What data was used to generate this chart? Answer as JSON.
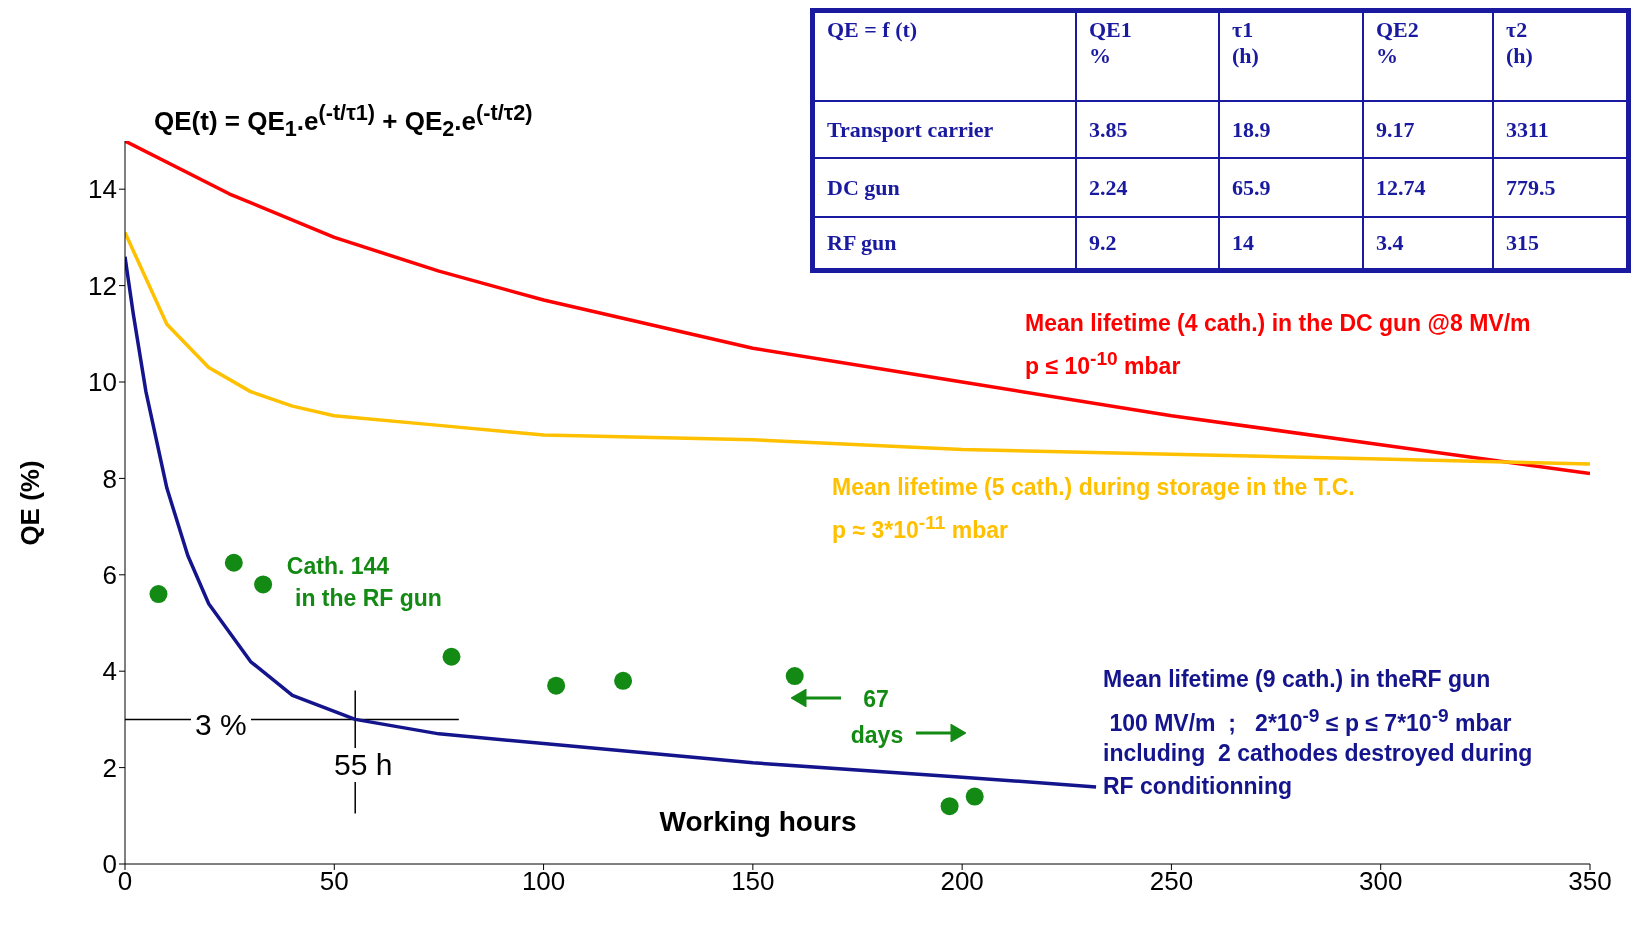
{
  "chart_data": [
    {
      "type": "line",
      "xlabel": "Working hours",
      "ylabel": "QE (%)",
      "xlim": [
        0,
        350
      ],
      "xticks": [
        0,
        50,
        100,
        150,
        200,
        250,
        300,
        350
      ],
      "ylim": [
        0,
        15
      ],
      "yticks": [
        0,
        2,
        4,
        6,
        8,
        10,
        12,
        14
      ],
      "marker": "none",
      "line_style": "solid",
      "series": [
        {
          "name": "Mean lifetime (4 cath.) in the DC gun @8 MV/m",
          "color": "#ff0000",
          "x": [
            0,
            25,
            50,
            75,
            100,
            150,
            200,
            250,
            300,
            350
          ],
          "values": [
            15.0,
            13.9,
            13.0,
            12.3,
            11.7,
            10.7,
            10.0,
            9.3,
            8.7,
            8.1
          ]
        },
        {
          "name": "Mean lifetime (5 cath.) during storage in the T.C.",
          "color": "#ffc000",
          "x": [
            0,
            10,
            20,
            30,
            40,
            50,
            75,
            100,
            150,
            200,
            250,
            300,
            350
          ],
          "values": [
            13.1,
            11.2,
            10.3,
            9.8,
            9.5,
            9.3,
            9.1,
            8.9,
            8.8,
            8.6,
            8.5,
            8.4,
            8.3
          ]
        },
        {
          "name": "Mean lifetime (9 cath.) in theRF gun",
          "color": "#14148c",
          "x": [
            0,
            2,
            5,
            10,
            15,
            20,
            30,
            40,
            55,
            75,
            100,
            150,
            200,
            232
          ],
          "values": [
            12.6,
            11.4,
            9.8,
            7.8,
            6.4,
            5.4,
            4.2,
            3.5,
            3.0,
            2.7,
            2.5,
            2.1,
            1.8,
            1.6
          ]
        },
        {
          "name": "Cath. 144",
          "type": "scatter",
          "marker": "circle",
          "color": "#138a13",
          "x": [
            8,
            26,
            33,
            78,
            103,
            119,
            160,
            197,
            203
          ],
          "values": [
            5.6,
            6.25,
            5.8,
            4.3,
            3.7,
            3.8,
            3.9,
            1.2,
            1.4
          ]
        }
      ],
      "ref_lines": [
        {
          "axis": "y",
          "value": 3,
          "label": "3 %",
          "color": "#000000"
        },
        {
          "axis": "x",
          "value": 55,
          "label": "55 h",
          "color": "#000000"
        }
      ],
      "annotations": [
        "QE(t) = QE$_{1}$.e$^{(-t/τ1)}$ + QE$_{2}$.e$^{(-t/τ2)}$",
        "p ≤ 10$^{-10}$ mbar",
        "p ≈ 3*10$^{-11}$ mbar",
        " 100 MV/m  ;   2*10$^{-9}$ ≤ p ≤ 7*10$^{-9}$ mbar",
        "including  2 cathodes destroyed during",
        "RF conditionning",
        "in the RF gun",
        "67",
        "days"
      ]
    },
    {
      "type": "other",
      "annotations": [
        "QE = f (t)",
        "QE1\n%",
        "τ1\n(h)",
        "QE2\n%",
        "τ2\n(h)",
        "Transport carrier",
        "3.85",
        "18.9",
        "9.17",
        "3311",
        "DC gun",
        "2.24",
        "65.9",
        "12.74",
        "779.5",
        "RF gun",
        "9.2",
        "14",
        "3.4",
        "315"
      ]
    }
  ]
}
